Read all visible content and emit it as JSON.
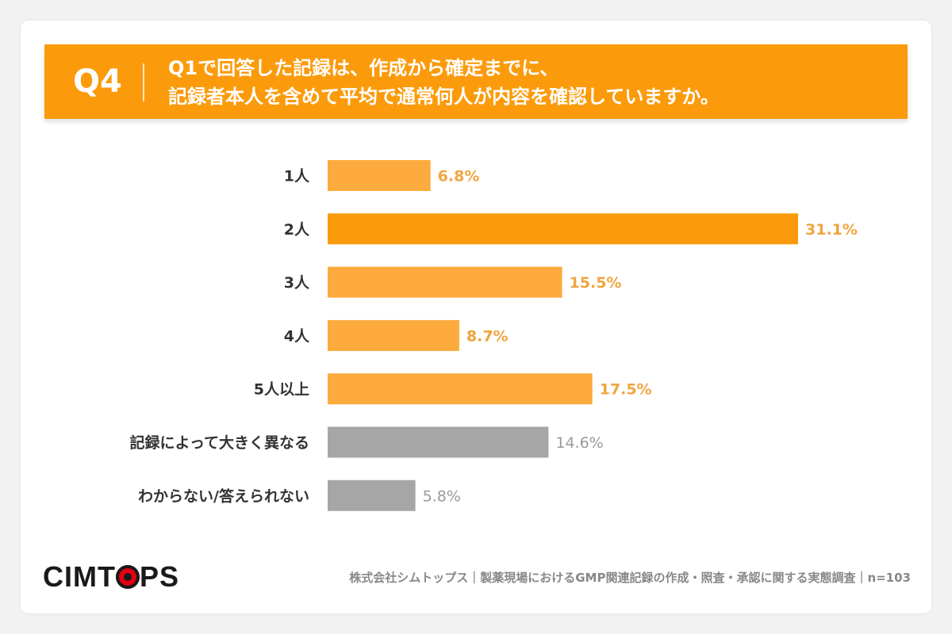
{
  "header": {
    "qnum": "Q4",
    "line1": "Q1で回答した記録は、作成から確定までに、",
    "line2": "記録者本人を含めて平均で通常何人が内容を確認していますか。"
  },
  "chart_data": {
    "type": "bar",
    "orientation": "horizontal",
    "categories": [
      "1人",
      "2人",
      "3人",
      "4人",
      "5人以上",
      "記録によって大きく異なる",
      "わからない/答えられない"
    ],
    "values": [
      6.8,
      31.1,
      15.5,
      8.7,
      17.5,
      14.6,
      5.8
    ],
    "data_labels": [
      "6.8%",
      "31.1%",
      "15.5%",
      "8.7%",
      "17.5%",
      "14.6%",
      "5.8%"
    ],
    "unit": "%",
    "xlim": [
      0,
      31.1
    ],
    "grid": false,
    "legend": "none",
    "colors": {
      "bar_light": "#fcab3c",
      "bar_highlight": "#fb9b0c",
      "bar_other": "#a7a6a6",
      "label_orange": "#f1a43f",
      "label_gray": "#9a9a9a",
      "category_text": "#333333"
    }
  },
  "branding": {
    "logo_left": "CIMT",
    "logo_right": "PS"
  },
  "footer": {
    "text": "株式会社シムトップス｜製薬現場におけるGMP関連記録の作成・照査・承認に関する実態調査｜n=103"
  }
}
